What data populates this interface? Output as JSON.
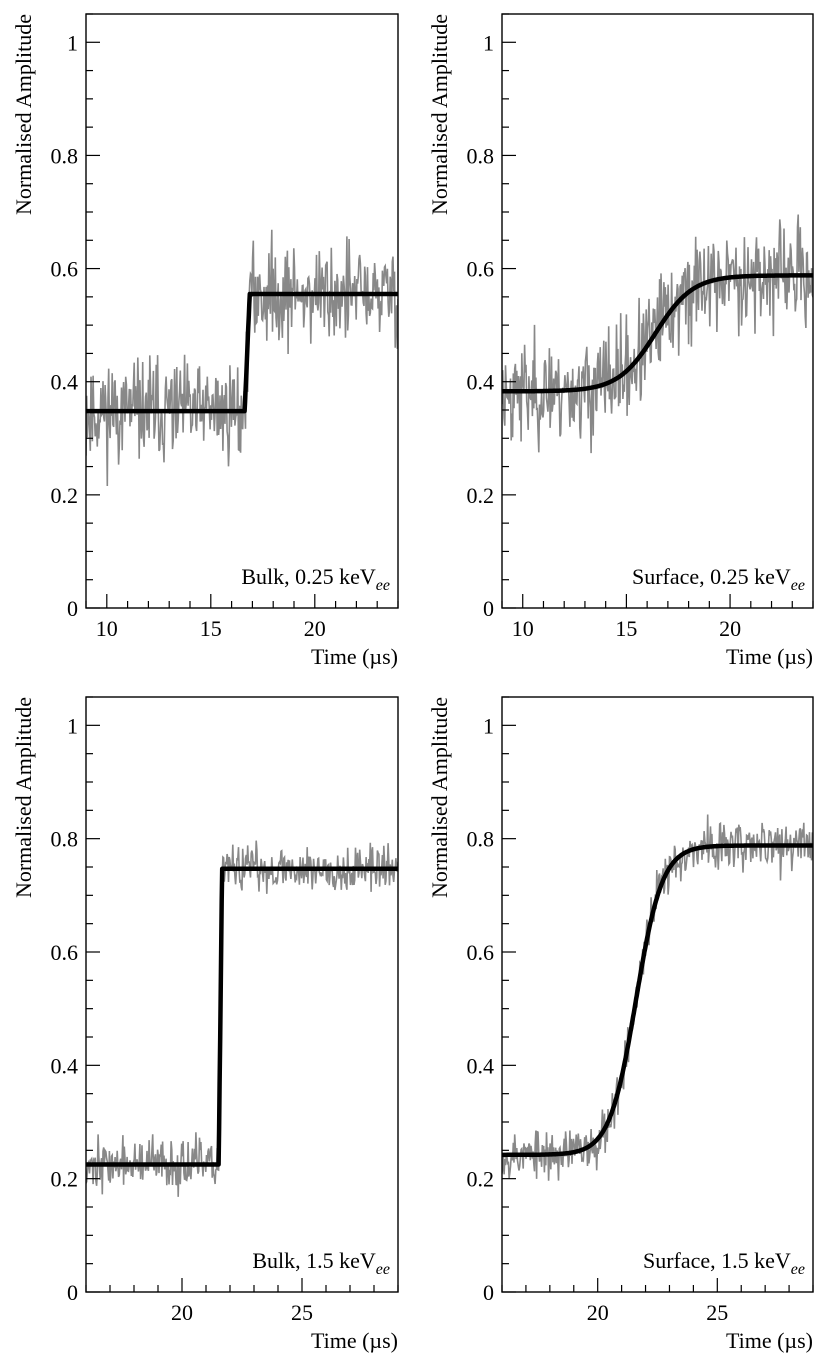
{
  "chart_data": [
    {
      "type": "line",
      "title": "",
      "xlabel": "Time (µs)",
      "ylabel": "Normalised Amplitude",
      "xlim": [
        9,
        24
      ],
      "ylim": [
        0,
        1.05
      ],
      "xticks": [
        10,
        15,
        20
      ],
      "yticks": [
        0,
        0.2,
        0.4,
        0.6,
        0.8,
        1
      ],
      "ytick_labels": [
        "0",
        "0.2",
        "0.4",
        "0.6",
        "0.8",
        "1"
      ],
      "annotation": {
        "text": "Bulk, 0.25 keV",
        "sub": "ee"
      },
      "fit": {
        "kind": "step",
        "baseline": 0.348,
        "plateau": 0.555,
        "t0": 16.75,
        "width": 0.12
      },
      "noise": {
        "sigma": 0.062,
        "seed": 11
      },
      "series": [
        {
          "name": "pulse",
          "color": "#888888"
        },
        {
          "name": "fit",
          "color": "#000000"
        }
      ]
    },
    {
      "type": "line",
      "title": "",
      "xlabel": "Time (µs)",
      "ylabel": "Normalised Amplitude",
      "xlim": [
        9,
        24
      ],
      "ylim": [
        0,
        1.05
      ],
      "xticks": [
        10,
        15,
        20
      ],
      "yticks": [
        0,
        0.2,
        0.4,
        0.6,
        0.8,
        1
      ],
      "ytick_labels": [
        "0",
        "0.2",
        "0.4",
        "0.6",
        "0.8",
        "1"
      ],
      "annotation": {
        "text": "Surface, 0.25 keV",
        "sub": "ee"
      },
      "fit": {
        "kind": "sigmoid",
        "baseline": 0.383,
        "plateau": 0.588,
        "t0": 16.4,
        "width": 0.9
      },
      "noise": {
        "sigma": 0.062,
        "seed": 23
      },
      "series": [
        {
          "name": "pulse",
          "color": "#888888"
        },
        {
          "name": "fit",
          "color": "#000000"
        }
      ]
    },
    {
      "type": "line",
      "title": "",
      "xlabel": "Time (µs)",
      "ylabel": "Normalised Amplitude",
      "xlim": [
        16,
        29
      ],
      "ylim": [
        0,
        1.05
      ],
      "xticks": [
        20,
        25
      ],
      "yticks": [
        0,
        0.2,
        0.4,
        0.6,
        0.8,
        1
      ],
      "ytick_labels": [
        "0",
        "0.2",
        "0.4",
        "0.6",
        "0.8",
        "1"
      ],
      "annotation": {
        "text": "Bulk, 1.5 keV",
        "sub": "ee"
      },
      "fit": {
        "kind": "step",
        "baseline": 0.225,
        "plateau": 0.747,
        "t0": 21.6,
        "width": 0.07
      },
      "noise": {
        "sigma": 0.03,
        "seed": 37
      },
      "series": [
        {
          "name": "pulse",
          "color": "#888888"
        },
        {
          "name": "fit",
          "color": "#000000"
        }
      ]
    },
    {
      "type": "line",
      "title": "",
      "xlabel": "Time (µs)",
      "ylabel": "Normalised Amplitude",
      "xlim": [
        16,
        29
      ],
      "ylim": [
        0,
        1.05
      ],
      "xticks": [
        20,
        25
      ],
      "yticks": [
        0,
        0.2,
        0.4,
        0.6,
        0.8,
        1
      ],
      "ytick_labels": [
        "0",
        "0.2",
        "0.4",
        "0.6",
        "0.8",
        "1"
      ],
      "annotation": {
        "text": "Surface, 1.5 keV",
        "sub": "ee"
      },
      "fit": {
        "kind": "sigmoid",
        "baseline": 0.242,
        "plateau": 0.788,
        "t0": 21.6,
        "width": 0.55
      },
      "noise": {
        "sigma": 0.03,
        "seed": 53
      },
      "series": [
        {
          "name": "pulse",
          "color": "#888888"
        },
        {
          "name": "fit",
          "color": "#000000"
        }
      ]
    }
  ]
}
